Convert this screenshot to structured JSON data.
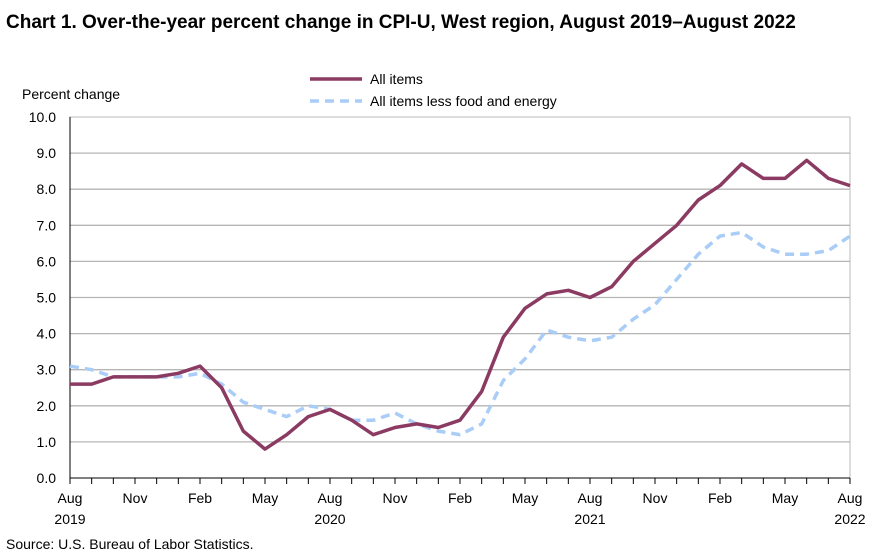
{
  "chart_data": {
    "type": "line",
    "title": "Chart 1. Over-the-year percent change in CPI-U, West region, August 2019–August 2022",
    "ylabel": "Percent change",
    "xlabel": "",
    "ylim": [
      0,
      10
    ],
    "yticks": [
      "0.0",
      "1.0",
      "2.0",
      "3.0",
      "4.0",
      "5.0",
      "6.0",
      "7.0",
      "8.0",
      "9.0",
      "10.0"
    ],
    "xtick_labels": [
      [
        "Aug",
        "2019"
      ],
      [
        "Nov",
        ""
      ],
      [
        "Feb",
        ""
      ],
      [
        "May",
        ""
      ],
      [
        "Aug",
        "2020"
      ],
      [
        "Nov",
        ""
      ],
      [
        "Feb",
        ""
      ],
      [
        "May",
        ""
      ],
      [
        "Aug",
        "2021"
      ],
      [
        "Nov",
        ""
      ],
      [
        "Feb",
        ""
      ],
      [
        "May",
        ""
      ],
      [
        "Aug",
        "2022"
      ]
    ],
    "months": 37,
    "grid": true,
    "legend": "top-center",
    "series": [
      {
        "name": "All items",
        "color": "#8b3a62",
        "style": "solid",
        "values": [
          2.6,
          2.6,
          2.8,
          2.8,
          2.8,
          2.9,
          3.1,
          2.5,
          1.3,
          0.8,
          1.2,
          1.7,
          1.9,
          1.6,
          1.2,
          1.4,
          1.5,
          1.4,
          1.6,
          2.4,
          3.9,
          4.7,
          5.1,
          5.2,
          5.0,
          5.3,
          6.0,
          6.5,
          7.0,
          7.7,
          8.1,
          8.7,
          8.3,
          8.3,
          8.8,
          8.3,
          8.1
        ]
      },
      {
        "name": "All items less food and energy",
        "color": "#a9cdf7",
        "style": "dashed",
        "values": [
          3.1,
          3.0,
          2.8,
          2.8,
          2.8,
          2.8,
          2.9,
          2.6,
          2.1,
          1.9,
          1.7,
          2.0,
          1.9,
          1.6,
          1.6,
          1.8,
          1.5,
          1.3,
          1.2,
          1.5,
          2.7,
          3.3,
          4.1,
          3.9,
          3.8,
          3.9,
          4.4,
          4.8,
          5.5,
          6.2,
          6.7,
          6.8,
          6.4,
          6.2,
          6.2,
          6.3,
          6.7
        ]
      }
    ]
  },
  "source": "Source: U.S. Bureau of Labor Statistics."
}
